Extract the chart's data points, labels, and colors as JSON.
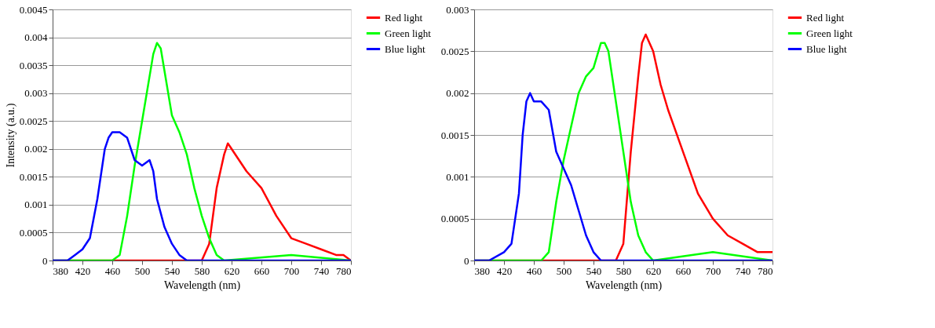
{
  "chart_data": [
    {
      "type": "line",
      "xlabel": "Wavelength (nm)",
      "ylabel": "Intensity (a.u.)",
      "xlim": [
        380,
        780
      ],
      "xticks": [
        380,
        420,
        460,
        500,
        540,
        580,
        620,
        660,
        700,
        740,
        780
      ],
      "ylim": [
        0,
        0.0045
      ],
      "yticks": [
        0,
        0.0005,
        0.001,
        0.0015,
        0.002,
        0.0025,
        0.003,
        0.0035,
        0.004,
        0.0045
      ],
      "grid": "y",
      "legend": "right",
      "marker": "none",
      "line_style": "solid",
      "series": [
        {
          "name": "Red light",
          "color": "#ff0000",
          "x": [
            380,
            480,
            580,
            590,
            600,
            610,
            615,
            620,
            630,
            640,
            660,
            680,
            700,
            720,
            740,
            760,
            770,
            780
          ],
          "values": [
            0,
            0,
            0,
            0.0003,
            0.0013,
            0.0019,
            0.0021,
            0.002,
            0.0018,
            0.0016,
            0.0013,
            0.0008,
            0.0004,
            0.0003,
            0.0002,
            0.0001,
            0.0001,
            0
          ]
        },
        {
          "name": "Green light",
          "color": "#00ff00",
          "x": [
            380,
            460,
            470,
            480,
            490,
            500,
            510,
            515,
            520,
            525,
            530,
            540,
            550,
            560,
            570,
            580,
            590,
            600,
            610,
            700,
            780
          ],
          "values": [
            0,
            0,
            0.0001,
            0.0008,
            0.0017,
            0.0025,
            0.0033,
            0.0037,
            0.0039,
            0.0038,
            0.0034,
            0.0026,
            0.0023,
            0.0019,
            0.0013,
            0.0008,
            0.0004,
            0.0001,
            0,
            0.0001,
            0
          ]
        },
        {
          "name": "Blue light",
          "color": "#0000ff",
          "x": [
            380,
            400,
            410,
            420,
            430,
            440,
            450,
            455,
            460,
            470,
            480,
            490,
            500,
            510,
            515,
            520,
            530,
            540,
            550,
            560,
            580,
            780
          ],
          "values": [
            0,
            0,
            0.0001,
            0.0002,
            0.0004,
            0.0011,
            0.002,
            0.0022,
            0.0023,
            0.0023,
            0.0022,
            0.0018,
            0.0017,
            0.0018,
            0.0016,
            0.0011,
            0.0006,
            0.0003,
            0.0001,
            0,
            0,
            0
          ]
        }
      ]
    },
    {
      "type": "line",
      "xlabel": "Wavelength (nm)",
      "xlim": [
        380,
        780
      ],
      "xticks": [
        380,
        420,
        460,
        500,
        540,
        580,
        620,
        660,
        700,
        740,
        780
      ],
      "ylim": [
        0,
        0.003
      ],
      "yticks": [
        0,
        0.0005,
        0.001,
        0.0015,
        0.002,
        0.0025,
        0.003
      ],
      "grid": "y",
      "legend": "right",
      "marker": "none",
      "line_style": "solid",
      "series": [
        {
          "name": "Red light",
          "color": "#ff0000",
          "x": [
            380,
            570,
            580,
            590,
            600,
            605,
            610,
            620,
            630,
            640,
            660,
            680,
            700,
            720,
            740,
            760,
            780
          ],
          "values": [
            0,
            0,
            0.0002,
            0.0013,
            0.0022,
            0.0026,
            0.0027,
            0.0025,
            0.0021,
            0.0018,
            0.0013,
            0.0008,
            0.0005,
            0.0003,
            0.0002,
            0.0001,
            0.0001
          ]
        },
        {
          "name": "Green light",
          "color": "#00ff00",
          "x": [
            380,
            470,
            480,
            490,
            500,
            510,
            520,
            530,
            540,
            550,
            555,
            560,
            570,
            580,
            590,
            600,
            610,
            620,
            700,
            780
          ],
          "values": [
            0,
            0,
            0.0001,
            0.0007,
            0.0012,
            0.0016,
            0.002,
            0.0022,
            0.0023,
            0.0026,
            0.0026,
            0.0025,
            0.0019,
            0.0013,
            0.0007,
            0.0003,
            0.0001,
            0,
            0.0001,
            0
          ]
        },
        {
          "name": "Blue light",
          "color": "#0000ff",
          "x": [
            380,
            400,
            420,
            430,
            440,
            445,
            450,
            455,
            460,
            470,
            480,
            490,
            500,
            510,
            520,
            530,
            540,
            550,
            570,
            780
          ],
          "values": [
            0,
            0,
            0.0001,
            0.0002,
            0.0008,
            0.0015,
            0.0019,
            0.002,
            0.0019,
            0.0019,
            0.0018,
            0.0013,
            0.0011,
            0.0009,
            0.0006,
            0.0003,
            0.0001,
            0,
            0,
            0
          ]
        }
      ]
    }
  ]
}
